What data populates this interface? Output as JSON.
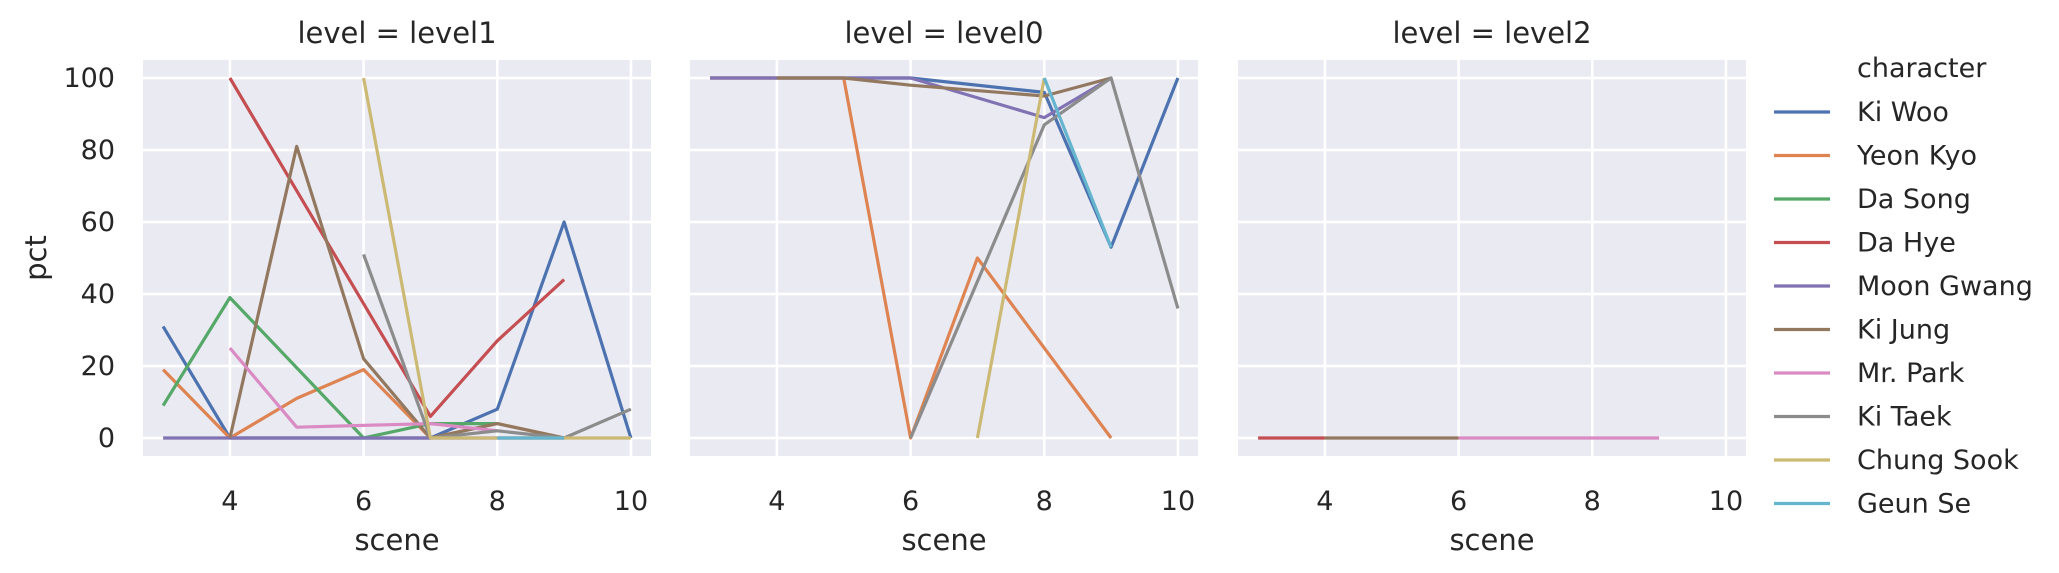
{
  "chart_data": {
    "type": "line",
    "x_label": "scene",
    "y_label": "pct",
    "xlim": [
      2.7,
      10.3
    ],
    "ylim": [
      -5,
      105
    ],
    "x_ticks": [
      4,
      6,
      8,
      10
    ],
    "y_ticks": [
      0,
      20,
      40,
      60,
      80,
      100
    ],
    "grid": true,
    "legend": {
      "title": "character",
      "placement": "right",
      "entries": [
        "Ki Woo",
        "Yeon Kyo",
        "Da Song",
        "Da Hye",
        "Moon Gwang",
        "Ki Jung",
        "Mr. Park",
        "Ki Taek",
        "Chung Sook",
        "Geun Se"
      ]
    },
    "colors": {
      "Ki Woo": "#4c72b0",
      "Yeon Kyo": "#dd8452",
      "Da Song": "#55a868",
      "Da Hye": "#c44e52",
      "Moon Gwang": "#8172b3",
      "Ki Jung": "#937860",
      "Mr. Park": "#da8bc3",
      "Ki Taek": "#8c8c8c",
      "Chung Sook": "#ccb974",
      "Geun Se": "#64b5cd"
    },
    "panels": [
      {
        "title": "level = level1",
        "series": [
          {
            "name": "Ki Woo",
            "x": [
              3,
              4,
              5,
              6,
              7,
              8,
              9,
              10
            ],
            "y": [
              31,
              0,
              0,
              0,
              0,
              8,
              60,
              0
            ]
          },
          {
            "name": "Yeon Kyo",
            "x": [
              3,
              4,
              5,
              6,
              7,
              8,
              9
            ],
            "y": [
              19,
              0,
              11,
              19,
              0,
              4,
              0
            ]
          },
          {
            "name": "Da Song",
            "x": [
              3,
              4,
              6,
              7,
              8
            ],
            "y": [
              9,
              39,
              0,
              4,
              4
            ]
          },
          {
            "name": "Da Hye",
            "x": [
              4,
              7,
              8,
              9
            ],
            "y": [
              100,
              6,
              27,
              44
            ]
          },
          {
            "name": "Moon Gwang",
            "x": [
              3,
              4,
              5,
              6,
              7,
              8,
              9
            ],
            "y": [
              0,
              0,
              0,
              0,
              0,
              0,
              0
            ]
          },
          {
            "name": "Ki Jung",
            "x": [
              4,
              5,
              6,
              7,
              8,
              9
            ],
            "y": [
              0,
              81,
              22,
              0,
              4,
              0
            ]
          },
          {
            "name": "Mr. Park",
            "x": [
              4,
              5,
              7,
              8
            ],
            "y": [
              25,
              3,
              4,
              2
            ]
          },
          {
            "name": "Ki Taek",
            "x": [
              6,
              7,
              8,
              9,
              10
            ],
            "y": [
              51,
              0,
              2,
              0,
              8
            ]
          },
          {
            "name": "Chung Sook",
            "x": [
              6,
              7,
              8,
              9,
              10
            ],
            "y": [
              100,
              0,
              0,
              0,
              0
            ]
          },
          {
            "name": "Geun Se",
            "x": [
              8,
              9
            ],
            "y": [
              0,
              0
            ]
          }
        ]
      },
      {
        "title": "level = level0",
        "series": [
          {
            "name": "Ki Woo",
            "x": [
              3,
              4,
              5,
              6,
              8,
              9,
              10
            ],
            "y": [
              100,
              100,
              100,
              100,
              96,
              53,
              100
            ]
          },
          {
            "name": "Yeon Kyo",
            "x": [
              3,
              4,
              5,
              6,
              7,
              9
            ],
            "y": [
              100,
              100,
              100,
              0,
              50,
              0
            ]
          },
          {
            "name": "Moon Gwang",
            "x": [
              3,
              4,
              5,
              6,
              8,
              9
            ],
            "y": [
              100,
              100,
              100,
              100,
              89,
              100
            ]
          },
          {
            "name": "Ki Jung",
            "x": [
              4,
              5,
              6,
              8,
              9
            ],
            "y": [
              100,
              100,
              98,
              95,
              100
            ]
          },
          {
            "name": "Ki Taek",
            "x": [
              6,
              8,
              9,
              10
            ],
            "y": [
              0,
              87,
              100,
              36
            ]
          },
          {
            "name": "Chung Sook",
            "x": [
              7,
              8
            ],
            "y": [
              0,
              100
            ]
          },
          {
            "name": "Geun Se",
            "x": [
              8,
              9
            ],
            "y": [
              100,
              53
            ]
          }
        ]
      },
      {
        "title": "level = level2",
        "series": [
          {
            "name": "Da Hye",
            "x": [
              3,
              4
            ],
            "y": [
              0,
              0
            ]
          },
          {
            "name": "Ki Jung",
            "x": [
              4,
              6
            ],
            "y": [
              0,
              0
            ]
          },
          {
            "name": "Mr. Park",
            "x": [
              6,
              9
            ],
            "y": [
              0,
              0
            ]
          }
        ]
      }
    ]
  }
}
